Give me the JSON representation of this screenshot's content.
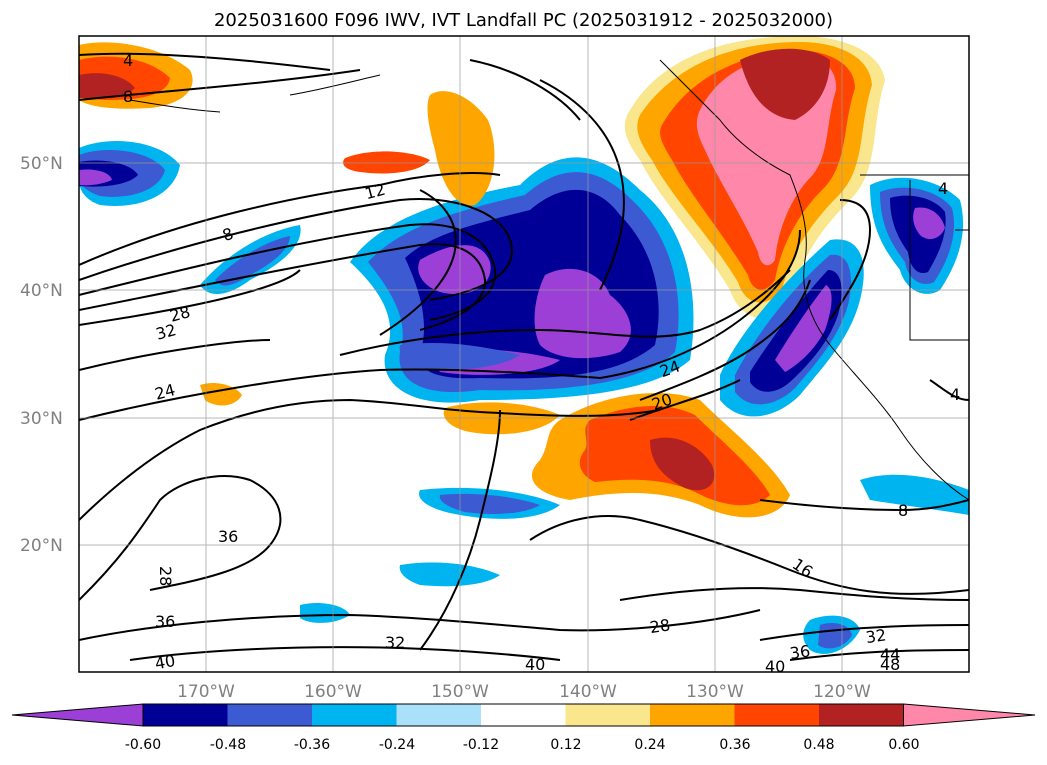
{
  "title": "2025031600 F096 IWV, IVT Landfall PC (2025031912 - 2025032000)",
  "map": {
    "lon_range": [
      -180,
      -110
    ],
    "lat_range": [
      10,
      60
    ],
    "lat_ticks": [
      {
        "value": 20,
        "label": "20°N"
      },
      {
        "value": 30,
        "label": "30°N"
      },
      {
        "value": 40,
        "label": "40°N"
      },
      {
        "value": 50,
        "label": "50°N"
      }
    ],
    "lon_ticks": [
      {
        "value": -170,
        "label": "170°W"
      },
      {
        "value": -160,
        "label": "160°W"
      },
      {
        "value": -150,
        "label": "150°W"
      },
      {
        "value": -140,
        "label": "140°W"
      },
      {
        "value": -130,
        "label": "130°W"
      },
      {
        "value": -120,
        "label": "120°W"
      }
    ],
    "contour_labels": [
      "4",
      "8",
      "12",
      "8",
      "28",
      "32",
      "24",
      "36",
      "28",
      "36",
      "32",
      "40",
      "40",
      "24",
      "20",
      "16",
      "8",
      "4",
      "4",
      "28",
      "32",
      "36",
      "40",
      "44",
      "48"
    ]
  },
  "colorbar": {
    "colors": [
      "#9b3fd6",
      "#000096",
      "#3c5ad2",
      "#00b4f0",
      "#aae0fa",
      "#ffffff",
      "#fae68c",
      "#ffa500",
      "#ff4500",
      "#b22222",
      "#ff88aa"
    ],
    "labels": [
      "-0.60",
      "-0.48",
      "-0.36",
      "-0.24",
      "-0.12",
      "0.12",
      "0.24",
      "0.36",
      "0.48",
      "0.60"
    ],
    "extend": "both"
  }
}
